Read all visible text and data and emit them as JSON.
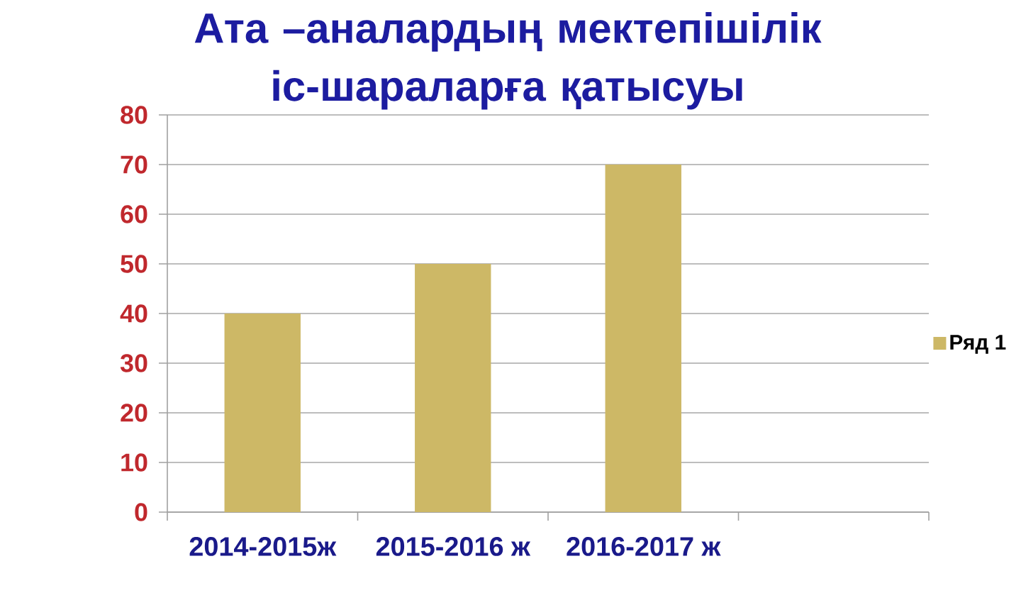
{
  "chart_data": {
    "type": "bar",
    "title": "Ата –аналардың мектепішілік іс-шараларға қатысуы",
    "categories": [
      "2014-2015ж",
      "2015-2016 ж",
      "2016-2017 ж",
      null
    ],
    "series": [
      {
        "name": "Ряд 1",
        "color": "#cdb866",
        "values": [
          40,
          50,
          70,
          null
        ]
      }
    ],
    "ylim": [
      0,
      80
    ],
    "yticks": [
      0,
      10,
      20,
      30,
      40,
      50,
      60,
      70,
      80
    ],
    "grid": "y",
    "legend": "right"
  }
}
